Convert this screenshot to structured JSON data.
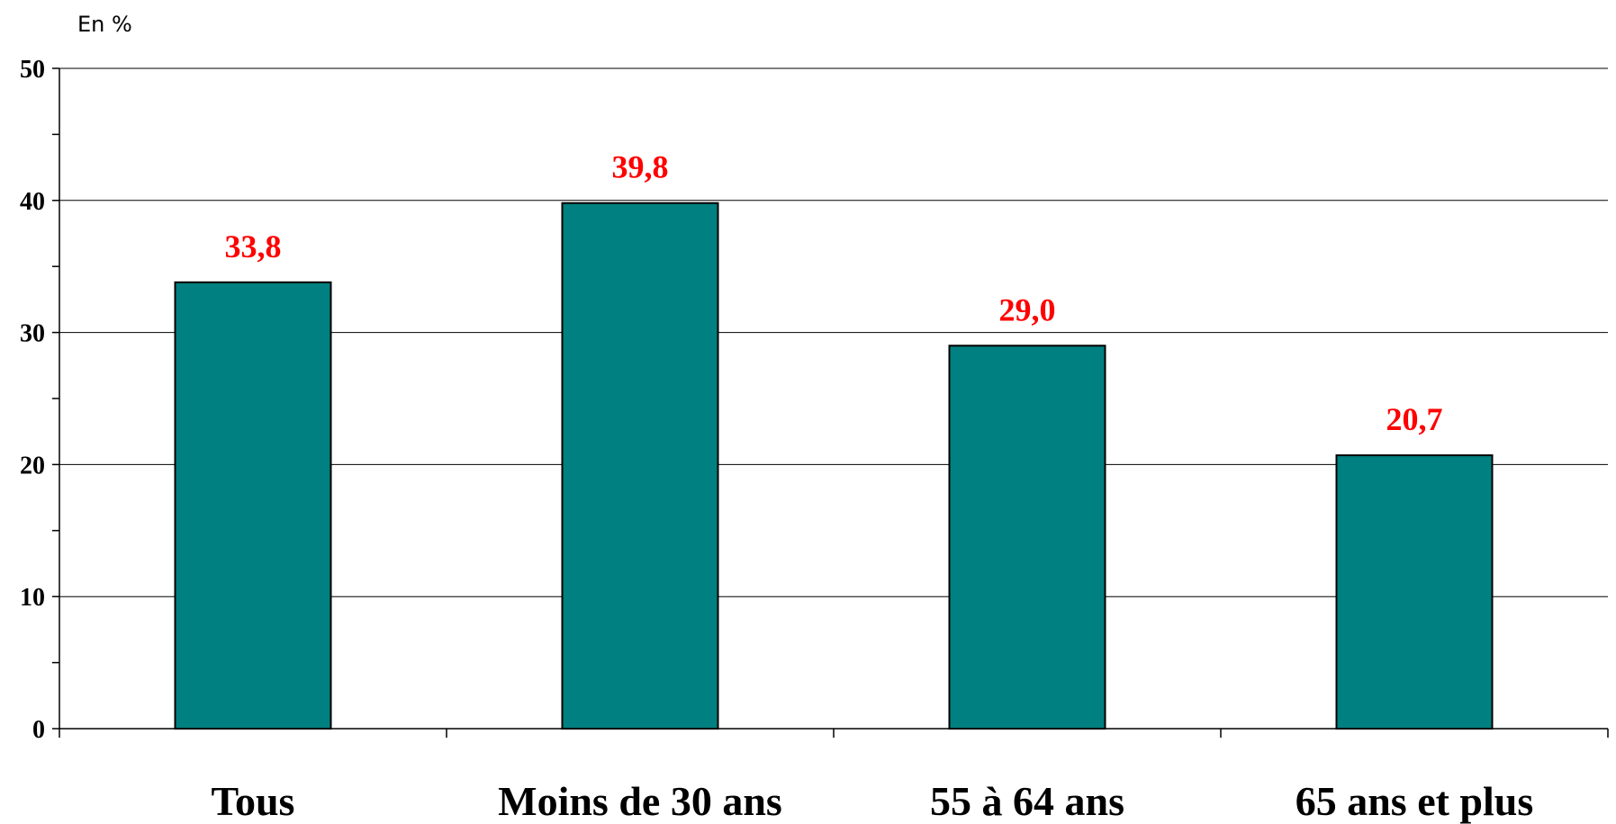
{
  "chart_data": {
    "type": "bar",
    "unit_label": "En %",
    "categories": [
      "Tous",
      "Moins de 30 ans",
      "55 à 64 ans",
      "65 ans et plus"
    ],
    "values": [
      33.8,
      39.8,
      29.0,
      20.7
    ],
    "value_labels": [
      "33,8",
      "39,8",
      "29,0",
      "20,7"
    ],
    "ylim": [
      0,
      50
    ],
    "yticks": [
      0,
      10,
      20,
      30,
      40,
      50
    ],
    "ytick_labels": [
      "0",
      "10",
      "20",
      "30",
      "40",
      "50"
    ],
    "grid": true,
    "bar_color": "#008080",
    "label_color": "#ff0000"
  }
}
